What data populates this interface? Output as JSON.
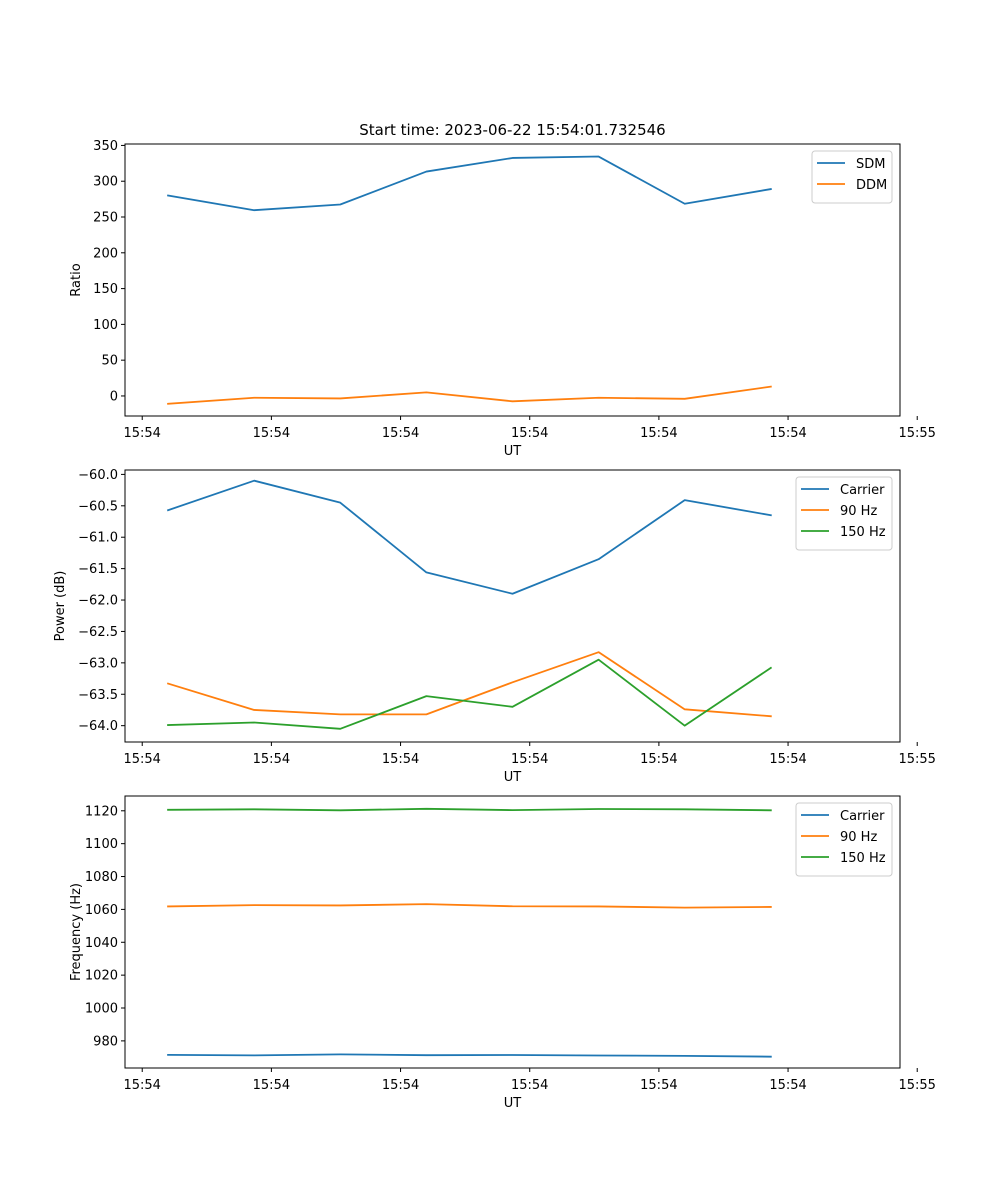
{
  "colors": {
    "blue": "#1f77b4",
    "orange": "#ff7f0e",
    "green": "#2ca02c"
  },
  "chart_data": [
    {
      "type": "line",
      "title": "Start time: 2023-06-22 15:54:01.732546",
      "xlabel": "UT",
      "ylabel": "Ratio",
      "xlim": [
        -0.5,
        8.5
      ],
      "ylim": [
        -28,
        352
      ],
      "x": [
        0,
        1,
        2,
        3,
        4,
        5,
        6,
        7
      ],
      "xticks": [
        -0.3,
        1.2,
        2.7,
        4.2,
        5.7,
        7.2,
        8.7
      ],
      "xtick_labels": [
        "15:54",
        "15:54",
        "15:54",
        "15:54",
        "15:54",
        "15:54",
        "15:55"
      ],
      "yticks": [
        0,
        50,
        100,
        150,
        200,
        250,
        300,
        350
      ],
      "ytick_labels": [
        "0",
        "50",
        "100",
        "150",
        "200",
        "250",
        "300",
        "350"
      ],
      "legend": "top-right",
      "grid": false,
      "series": [
        {
          "name": "SDM",
          "color": "#1f77b4",
          "values": [
            280,
            259.5,
            267.5,
            313.5,
            332.5,
            334.5,
            268.5,
            289
          ]
        },
        {
          "name": "DDM",
          "color": "#ff7f0e",
          "values": [
            -11,
            -2.5,
            -3.5,
            5,
            -7.5,
            -2.5,
            -4,
            13
          ]
        }
      ]
    },
    {
      "type": "line",
      "title": "",
      "xlabel": "UT",
      "ylabel": "Power (dB)",
      "xlim": [
        -0.5,
        8.5
      ],
      "ylim": [
        -64.26,
        -59.93
      ],
      "x": [
        0,
        1,
        2,
        3,
        4,
        5,
        6,
        7
      ],
      "xticks": [
        -0.3,
        1.2,
        2.7,
        4.2,
        5.7,
        7.2,
        8.7
      ],
      "xtick_labels": [
        "15:54",
        "15:54",
        "15:54",
        "15:54",
        "15:54",
        "15:54",
        "15:55"
      ],
      "yticks": [
        -64.0,
        -63.5,
        -63.0,
        -62.5,
        -62.0,
        -61.5,
        -61.0,
        -60.5,
        -60.0
      ],
      "ytick_labels": [
        "−64.0",
        "−63.5",
        "−63.0",
        "−62.5",
        "−62.0",
        "−61.5",
        "−61.0",
        "−60.5",
        "−60.0"
      ],
      "legend": "top-right",
      "grid": false,
      "series": [
        {
          "name": "Carrier",
          "color": "#1f77b4",
          "values": [
            -60.57,
            -60.1,
            -60.45,
            -61.56,
            -61.9,
            -61.35,
            -60.41,
            -60.65
          ]
        },
        {
          "name": "90 Hz",
          "color": "#ff7f0e",
          "values": [
            -63.33,
            -63.75,
            -63.82,
            -63.82,
            -63.31,
            -62.83,
            -63.74,
            -63.85
          ]
        },
        {
          "name": "150 Hz",
          "color": "#2ca02c",
          "values": [
            -63.99,
            -63.95,
            -64.05,
            -63.53,
            -63.7,
            -62.95,
            -64.0,
            -63.08
          ]
        }
      ]
    },
    {
      "type": "line",
      "title": "",
      "xlabel": "UT",
      "ylabel": "Frequency (Hz)",
      "xlim": [
        -0.5,
        8.5
      ],
      "ylim": [
        963.5,
        1129
      ],
      "x": [
        0,
        1,
        2,
        3,
        4,
        5,
        6,
        7
      ],
      "xticks": [
        -0.3,
        1.2,
        2.7,
        4.2,
        5.7,
        7.2,
        8.7
      ],
      "xtick_labels": [
        "15:54",
        "15:54",
        "15:54",
        "15:54",
        "15:54",
        "15:54",
        "15:55"
      ],
      "yticks": [
        980,
        1000,
        1020,
        1040,
        1060,
        1080,
        1100,
        1120
      ],
      "ytick_labels": [
        "980",
        "1000",
        "1020",
        "1040",
        "1060",
        "1080",
        "1100",
        "1120"
      ],
      "legend": "top-right",
      "grid": false,
      "series": [
        {
          "name": "Carrier",
          "color": "#1f77b4",
          "values": [
            971.5,
            971.2,
            971.8,
            971.3,
            971.4,
            971.1,
            970.9,
            970.4
          ]
        },
        {
          "name": "90 Hz",
          "color": "#ff7f0e",
          "values": [
            1061.8,
            1062.6,
            1062.4,
            1063.2,
            1061.9,
            1061.8,
            1061.1,
            1061.5
          ]
        },
        {
          "name": "150 Hz",
          "color": "#2ca02c",
          "values": [
            1120.6,
            1120.9,
            1120.3,
            1121.2,
            1120.4,
            1121.1,
            1120.9,
            1120.3
          ]
        }
      ]
    }
  ]
}
